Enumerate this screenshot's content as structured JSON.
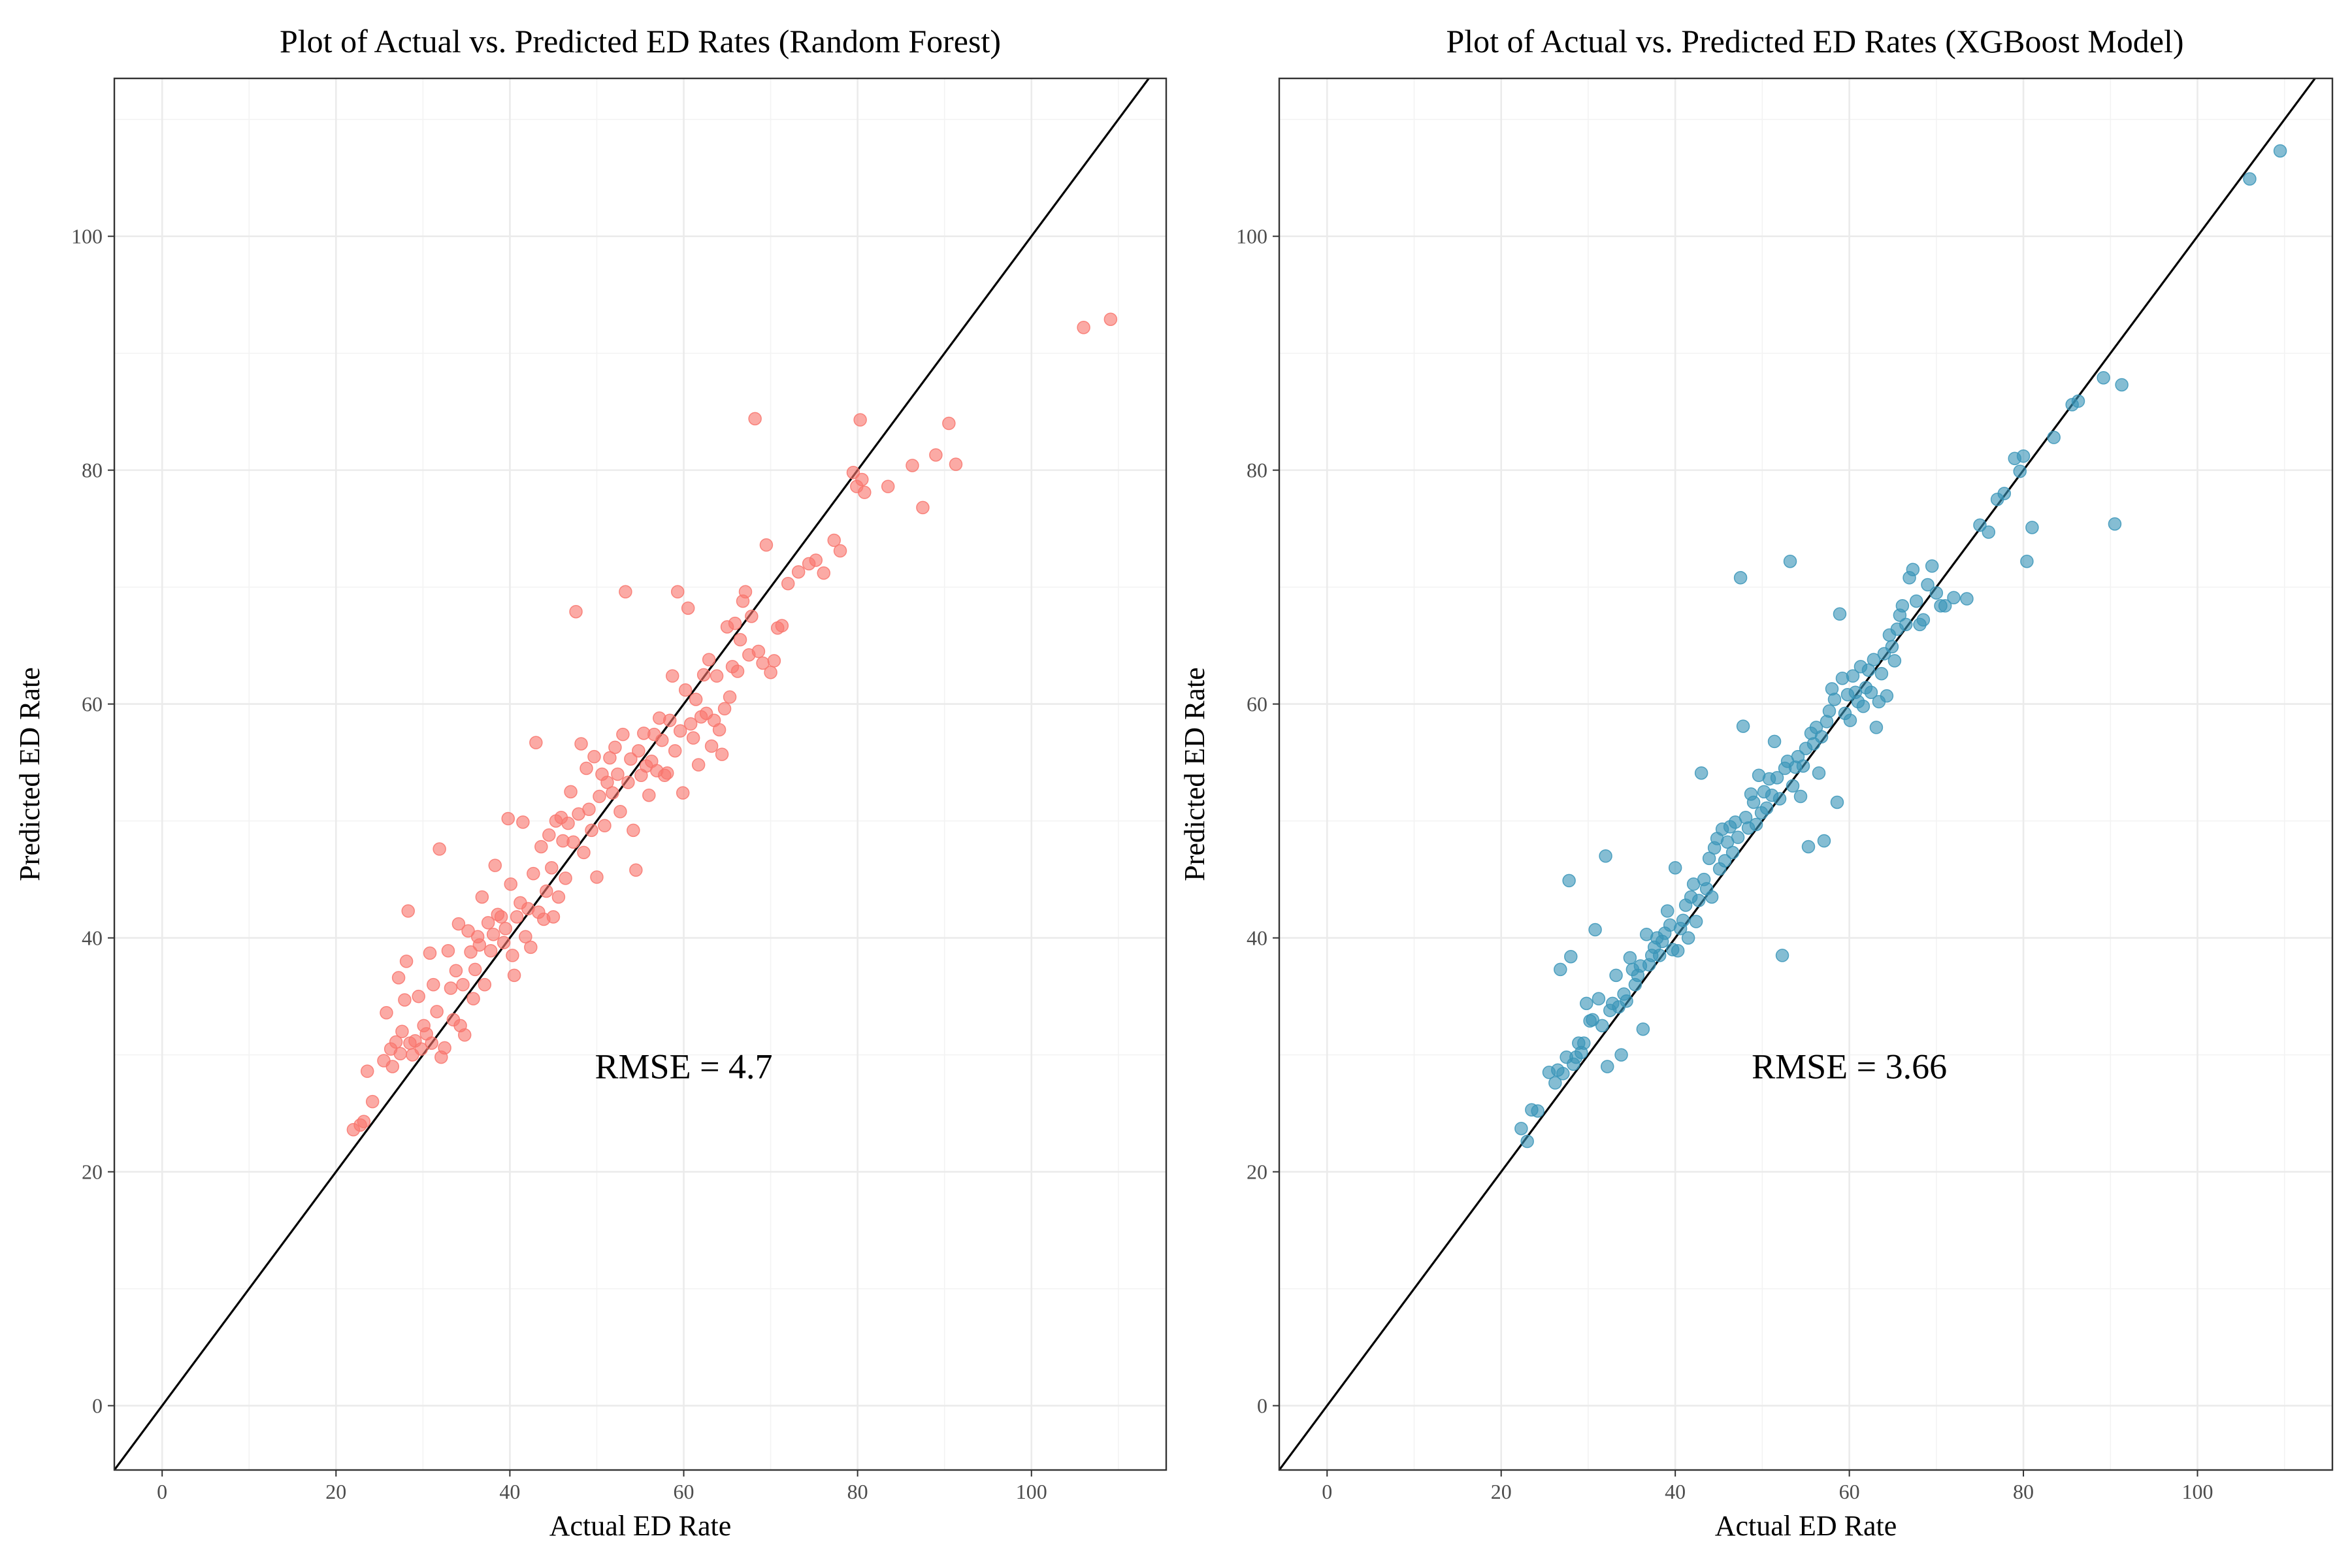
{
  "chart_data": [
    {
      "type": "scatter",
      "title": "Plot of Actual vs. Predicted ED Rates (Random Forest)",
      "xlabel": "Actual ED Rate",
      "ylabel": "Predicted ED Rate",
      "xlim": [
        -5.5,
        115.5
      ],
      "ylim": [
        -5.5,
        113.5
      ],
      "xticks": [
        "0",
        "20",
        "40",
        "60",
        "80",
        "100"
      ],
      "yticks": [
        "0",
        "20",
        "40",
        "60",
        "80",
        "100"
      ],
      "grid": true,
      "reference_line": "y = x",
      "annotation": "RMSE = 4.7",
      "point_color": "#f8766d",
      "points": [
        [
          22,
          23.6
        ],
        [
          22.8,
          24
        ],
        [
          23.2,
          24.3
        ],
        [
          23.6,
          28.6
        ],
        [
          24.2,
          26
        ],
        [
          25.5,
          29.5
        ],
        [
          25.8,
          33.6
        ],
        [
          26.3,
          30.5
        ],
        [
          26.5,
          29
        ],
        [
          26.9,
          31.1
        ],
        [
          27.2,
          36.6
        ],
        [
          27.4,
          30.1
        ],
        [
          27.6,
          32
        ],
        [
          27.9,
          34.7
        ],
        [
          28.1,
          38
        ],
        [
          28.3,
          42.3
        ],
        [
          28.5,
          31
        ],
        [
          28.8,
          30
        ],
        [
          29.1,
          31.2
        ],
        [
          29.5,
          35
        ],
        [
          29.8,
          30.5
        ],
        [
          30.1,
          32.5
        ],
        [
          30.4,
          31.8
        ],
        [
          30.8,
          38.7
        ],
        [
          31,
          31
        ],
        [
          31.2,
          36
        ],
        [
          31.6,
          33.7
        ],
        [
          31.9,
          47.6
        ],
        [
          32.1,
          29.8
        ],
        [
          32.5,
          30.6
        ],
        [
          32.9,
          38.9
        ],
        [
          33.2,
          35.7
        ],
        [
          33.5,
          33
        ],
        [
          33.8,
          37.2
        ],
        [
          34.1,
          41.2
        ],
        [
          34.3,
          32.5
        ],
        [
          34.6,
          36
        ],
        [
          34.8,
          31.7
        ],
        [
          35.2,
          40.6
        ],
        [
          35.5,
          38.8
        ],
        [
          35.8,
          34.8
        ],
        [
          36,
          37.3
        ],
        [
          36.3,
          40.1
        ],
        [
          36.5,
          39.4
        ],
        [
          36.8,
          43.5
        ],
        [
          37.1,
          36
        ],
        [
          37.5,
          41.3
        ],
        [
          37.8,
          38.9
        ],
        [
          38.1,
          40.3
        ],
        [
          38.3,
          46.2
        ],
        [
          38.6,
          42
        ],
        [
          39,
          41.8
        ],
        [
          39.3,
          39.6
        ],
        [
          39.5,
          40.8
        ],
        [
          39.8,
          50.2
        ],
        [
          40.1,
          44.6
        ],
        [
          40.3,
          38.5
        ],
        [
          40.5,
          36.8
        ],
        [
          40.8,
          41.8
        ],
        [
          41.2,
          43
        ],
        [
          41.5,
          49.9
        ],
        [
          41.8,
          40.1
        ],
        [
          42.1,
          42.5
        ],
        [
          42.4,
          39.2
        ],
        [
          42.7,
          45.5
        ],
        [
          43,
          56.7
        ],
        [
          43.3,
          42.2
        ],
        [
          43.6,
          47.8
        ],
        [
          43.9,
          41.6
        ],
        [
          44.2,
          44
        ],
        [
          44.5,
          48.8
        ],
        [
          44.8,
          46
        ],
        [
          45,
          41.8
        ],
        [
          45.3,
          50
        ],
        [
          45.6,
          43.5
        ],
        [
          45.9,
          50.3
        ],
        [
          46.1,
          48.3
        ],
        [
          46.4,
          45.1
        ],
        [
          46.7,
          49.8
        ],
        [
          47,
          52.5
        ],
        [
          47.3,
          48.2
        ],
        [
          47.6,
          67.9
        ],
        [
          47.9,
          50.6
        ],
        [
          48.2,
          56.6
        ],
        [
          48.5,
          47.3
        ],
        [
          48.8,
          54.5
        ],
        [
          49.1,
          51
        ],
        [
          49.4,
          49.2
        ],
        [
          49.7,
          55.5
        ],
        [
          50,
          45.2
        ],
        [
          50.3,
          52.1
        ],
        [
          50.6,
          54
        ],
        [
          50.9,
          49.6
        ],
        [
          51.2,
          53.3
        ],
        [
          51.5,
          55.4
        ],
        [
          51.8,
          52.4
        ],
        [
          52.1,
          56.3
        ],
        [
          52.4,
          54
        ],
        [
          52.7,
          50.8
        ],
        [
          53,
          57.4
        ],
        [
          53.3,
          69.6
        ],
        [
          53.6,
          53.3
        ],
        [
          53.9,
          55.3
        ],
        [
          54.2,
          49.2
        ],
        [
          54.5,
          45.8
        ],
        [
          54.8,
          56
        ],
        [
          55.1,
          53.9
        ],
        [
          55.4,
          57.5
        ],
        [
          55.7,
          54.7
        ],
        [
          56,
          52.2
        ],
        [
          56.3,
          55.1
        ],
        [
          56.6,
          57.4
        ],
        [
          56.9,
          54.3
        ],
        [
          57.2,
          58.8
        ],
        [
          57.5,
          56.9
        ],
        [
          57.8,
          53.9
        ],
        [
          58.1,
          54.1
        ],
        [
          58.4,
          58.6
        ],
        [
          58.7,
          62.4
        ],
        [
          59,
          56
        ],
        [
          59.3,
          69.6
        ],
        [
          59.6,
          57.7
        ],
        [
          59.9,
          52.4
        ],
        [
          60.2,
          61.2
        ],
        [
          60.5,
          68.2
        ],
        [
          60.8,
          58.3
        ],
        [
          61.1,
          57.1
        ],
        [
          61.4,
          60.4
        ],
        [
          61.7,
          54.8
        ],
        [
          62,
          58.9
        ],
        [
          62.3,
          62.5
        ],
        [
          62.6,
          59.2
        ],
        [
          62.9,
          63.8
        ],
        [
          63.2,
          56.4
        ],
        [
          63.5,
          58.6
        ],
        [
          63.8,
          62.4
        ],
        [
          64.1,
          57.8
        ],
        [
          64.4,
          55.7
        ],
        [
          64.7,
          59.6
        ],
        [
          65,
          66.6
        ],
        [
          65.3,
          60.6
        ],
        [
          65.6,
          63.2
        ],
        [
          65.9,
          66.9
        ],
        [
          66.2,
          62.8
        ],
        [
          66.5,
          65.5
        ],
        [
          66.8,
          68.8
        ],
        [
          67.1,
          69.6
        ],
        [
          67.5,
          64.2
        ],
        [
          67.8,
          67.5
        ],
        [
          68.2,
          84.4
        ],
        [
          68.6,
          64.5
        ],
        [
          69.1,
          63.5
        ],
        [
          69.5,
          73.6
        ],
        [
          70,
          62.7
        ],
        [
          70.4,
          63.7
        ],
        [
          70.8,
          66.5
        ],
        [
          71.3,
          66.7
        ],
        [
          72,
          70.3
        ],
        [
          73.2,
          71.3
        ],
        [
          74.4,
          72
        ],
        [
          75.2,
          72.3
        ],
        [
          76.1,
          71.2
        ],
        [
          77.3,
          74
        ],
        [
          78,
          73.1
        ],
        [
          79.5,
          79.8
        ],
        [
          79.9,
          78.6
        ],
        [
          80.3,
          84.3
        ],
        [
          80.5,
          79.2
        ],
        [
          80.8,
          78.1
        ],
        [
          83.5,
          78.6
        ],
        [
          86.3,
          80.4
        ],
        [
          87.5,
          76.8
        ],
        [
          89,
          81.3
        ],
        [
          90.5,
          84
        ],
        [
          91.3,
          80.5
        ],
        [
          106,
          92.2
        ],
        [
          109.1,
          92.9
        ]
      ]
    },
    {
      "type": "scatter",
      "title": "Plot of Actual vs. Predicted ED Rates (XGBoost Model)",
      "xlabel": "Actual ED Rate",
      "ylabel": "Predicted ED Rate",
      "xlim": [
        -5.5,
        115.5
      ],
      "ylim": [
        -5.5,
        113.5
      ],
      "xticks": [
        "0",
        "20",
        "40",
        "60",
        "80",
        "100"
      ],
      "yticks": [
        "0",
        "20",
        "40",
        "60",
        "80",
        "100"
      ],
      "grid": true,
      "reference_line": "y = x",
      "annotation": "RMSE = 3.66",
      "point_color": "#3a95b8",
      "points": [
        [
          22.3,
          23.7
        ],
        [
          23,
          22.6
        ],
        [
          23.5,
          25.3
        ],
        [
          24.2,
          25.2
        ],
        [
          25.5,
          28.5
        ],
        [
          26.2,
          27.6
        ],
        [
          26.5,
          28.7
        ],
        [
          26.8,
          37.3
        ],
        [
          27.1,
          28.4
        ],
        [
          27.5,
          29.8
        ],
        [
          27.8,
          44.9
        ],
        [
          28,
          38.4
        ],
        [
          28.3,
          29.2
        ],
        [
          28.6,
          29.8
        ],
        [
          28.9,
          31
        ],
        [
          29.2,
          30.2
        ],
        [
          29.5,
          31
        ],
        [
          29.8,
          34.4
        ],
        [
          30.2,
          32.9
        ],
        [
          30.5,
          33
        ],
        [
          30.8,
          40.7
        ],
        [
          31.2,
          34.8
        ],
        [
          31.6,
          32.5
        ],
        [
          32,
          47
        ],
        [
          32.2,
          29
        ],
        [
          32.5,
          33.8
        ],
        [
          32.8,
          34.4
        ],
        [
          33.2,
          36.8
        ],
        [
          33.5,
          34.1
        ],
        [
          33.8,
          30
        ],
        [
          34.1,
          35.2
        ],
        [
          34.4,
          34.6
        ],
        [
          34.8,
          38.3
        ],
        [
          35.1,
          37.3
        ],
        [
          35.4,
          36
        ],
        [
          35.7,
          36.8
        ],
        [
          36,
          37.6
        ],
        [
          36.3,
          32.2
        ],
        [
          36.7,
          40.3
        ],
        [
          37,
          37.7
        ],
        [
          37.3,
          38.5
        ],
        [
          37.6,
          39.2
        ],
        [
          37.9,
          40
        ],
        [
          38.2,
          38.5
        ],
        [
          38.5,
          39.7
        ],
        [
          38.8,
          40.4
        ],
        [
          39.1,
          42.3
        ],
        [
          39.4,
          41.1
        ],
        [
          39.7,
          39
        ],
        [
          40,
          46
        ],
        [
          40.3,
          38.9
        ],
        [
          40.6,
          40.8
        ],
        [
          40.9,
          41.5
        ],
        [
          41.2,
          42.8
        ],
        [
          41.5,
          40
        ],
        [
          41.8,
          43.5
        ],
        [
          42.1,
          44.6
        ],
        [
          42.4,
          41.4
        ],
        [
          42.7,
          43.2
        ],
        [
          43,
          54.1
        ],
        [
          43.3,
          45
        ],
        [
          43.6,
          44.2
        ],
        [
          43.9,
          46.8
        ],
        [
          44.2,
          43.5
        ],
        [
          44.5,
          47.7
        ],
        [
          44.8,
          48.5
        ],
        [
          45.1,
          45.9
        ],
        [
          45.4,
          49.3
        ],
        [
          45.7,
          46.6
        ],
        [
          46,
          48.2
        ],
        [
          46.3,
          49.5
        ],
        [
          46.6,
          47.3
        ],
        [
          46.9,
          49.9
        ],
        [
          47.2,
          48.6
        ],
        [
          47.5,
          70.8
        ],
        [
          47.8,
          58.1
        ],
        [
          48.1,
          50.3
        ],
        [
          48.4,
          49.4
        ],
        [
          48.7,
          52.3
        ],
        [
          49,
          51.6
        ],
        [
          49.3,
          49.7
        ],
        [
          49.6,
          53.9
        ],
        [
          49.9,
          50.7
        ],
        [
          50.2,
          52.5
        ],
        [
          50.5,
          51.1
        ],
        [
          50.8,
          53.6
        ],
        [
          51.1,
          52.2
        ],
        [
          51.4,
          56.8
        ],
        [
          51.7,
          53.7
        ],
        [
          52,
          51.9
        ],
        [
          52.3,
          38.5
        ],
        [
          52.6,
          54.5
        ],
        [
          52.9,
          55.1
        ],
        [
          53.2,
          72.2
        ],
        [
          53.5,
          53
        ],
        [
          53.8,
          54.6
        ],
        [
          54.1,
          55.5
        ],
        [
          54.4,
          52.1
        ],
        [
          54.7,
          54.7
        ],
        [
          55,
          56.2
        ],
        [
          55.3,
          47.8
        ],
        [
          55.6,
          57.5
        ],
        [
          55.9,
          56.6
        ],
        [
          56.2,
          58
        ],
        [
          56.5,
          54.1
        ],
        [
          56.8,
          57.2
        ],
        [
          57.1,
          48.3
        ],
        [
          57.4,
          58.5
        ],
        [
          57.7,
          59.4
        ],
        [
          58,
          61.3
        ],
        [
          58.3,
          60.4
        ],
        [
          58.6,
          51.6
        ],
        [
          58.9,
          67.7
        ],
        [
          59.2,
          62.2
        ],
        [
          59.5,
          59.2
        ],
        [
          59.8,
          60.8
        ],
        [
          60.1,
          58.6
        ],
        [
          60.4,
          62.4
        ],
        [
          60.7,
          61
        ],
        [
          61,
          60.2
        ],
        [
          61.3,
          63.2
        ],
        [
          61.6,
          59.8
        ],
        [
          61.9,
          61.4
        ],
        [
          62.2,
          62.9
        ],
        [
          62.5,
          61
        ],
        [
          62.8,
          63.8
        ],
        [
          63.1,
          58
        ],
        [
          63.4,
          60.2
        ],
        [
          63.7,
          62.6
        ],
        [
          64,
          64.3
        ],
        [
          64.3,
          60.7
        ],
        [
          64.6,
          65.9
        ],
        [
          64.9,
          64.9
        ],
        [
          65.2,
          63.7
        ],
        [
          65.5,
          66.4
        ],
        [
          65.8,
          67.6
        ],
        [
          66.1,
          68.4
        ],
        [
          66.5,
          66.8
        ],
        [
          66.9,
          70.8
        ],
        [
          67.3,
          71.5
        ],
        [
          67.7,
          68.8
        ],
        [
          68.1,
          66.8
        ],
        [
          68.5,
          67.2
        ],
        [
          69,
          70.2
        ],
        [
          69.5,
          71.8
        ],
        [
          70,
          69.5
        ],
        [
          70.5,
          68.4
        ],
        [
          71,
          68.4
        ],
        [
          72,
          69.1
        ],
        [
          73.5,
          69
        ],
        [
          75,
          75.3
        ],
        [
          76,
          74.7
        ],
        [
          77,
          77.5
        ],
        [
          77.8,
          78
        ],
        [
          79,
          81
        ],
        [
          79.6,
          79.9
        ],
        [
          80,
          81.2
        ],
        [
          80.4,
          72.2
        ],
        [
          81,
          75.1
        ],
        [
          83.5,
          82.8
        ],
        [
          85.6,
          85.6
        ],
        [
          86.3,
          85.9
        ],
        [
          89.2,
          87.9
        ],
        [
          90.5,
          75.4
        ],
        [
          91.3,
          87.3
        ],
        [
          106,
          104.9
        ],
        [
          109.5,
          107.3
        ]
      ]
    }
  ]
}
